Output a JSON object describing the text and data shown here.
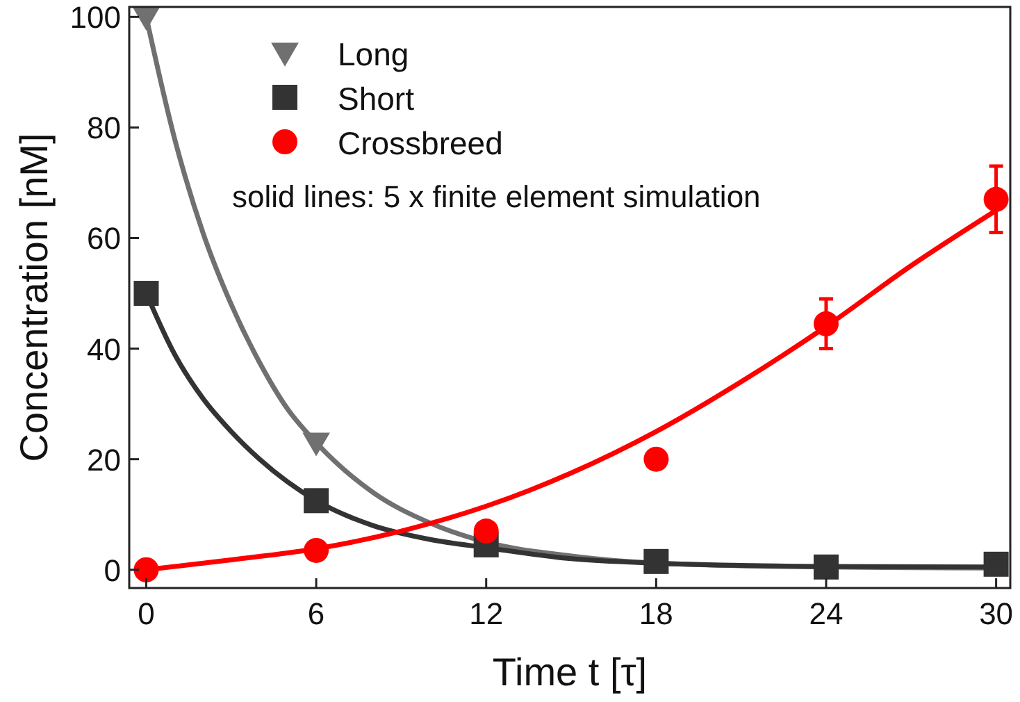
{
  "chart_data": {
    "type": "scatter",
    "xlabel": "Time t [τ]",
    "ylabel": "Concentration [nM]",
    "xlim": [
      -0.6,
      30.5
    ],
    "ylim": [
      -3.3,
      101.8
    ],
    "xticks": [
      0,
      6,
      12,
      18,
      24,
      30
    ],
    "yticks": [
      0,
      20,
      40,
      60,
      80,
      100
    ],
    "grid": false,
    "legend": "top",
    "annotations": [
      "solid lines: 5 x finite element simulation"
    ],
    "series": [
      {
        "type": "line",
        "color": "#707070",
        "marker": "none",
        "line_style": "solid",
        "x": [
          0,
          1,
          2,
          3,
          4,
          5,
          6,
          8,
          10,
          12,
          15,
          18,
          24,
          30
        ],
        "values": [
          100,
          78,
          61,
          48,
          37.5,
          29,
          23,
          14,
          8.5,
          5,
          2.5,
          1.2,
          0.5,
          0.3
        ]
      },
      {
        "type": "line",
        "color": "#333333",
        "marker": "none",
        "line_style": "solid",
        "x": [
          0,
          1,
          2,
          3,
          4,
          6,
          8,
          10,
          12,
          15,
          18,
          24,
          30
        ],
        "values": [
          50,
          39,
          31,
          25,
          20,
          12.5,
          8,
          5.5,
          4,
          2,
          1.2,
          0.6,
          0.5
        ]
      },
      {
        "type": "line",
        "color": "#ff0000",
        "marker": "none",
        "line_style": "solid",
        "x": [
          0,
          3,
          6,
          9,
          12,
          15,
          18,
          21,
          24,
          27,
          30
        ],
        "values": [
          0,
          1.8,
          3.8,
          7,
          11.5,
          17.5,
          25,
          34,
          44,
          55,
          65
        ]
      },
      {
        "name": "Long",
        "color": "#707070",
        "marker": "triangle",
        "x": [
          0,
          6
        ],
        "values": [
          100,
          23
        ]
      },
      {
        "name": "Short",
        "color": "#333333",
        "marker": "square",
        "x": [
          0,
          6,
          12,
          18,
          24,
          30
        ],
        "values": [
          50,
          12.5,
          4.5,
          1.5,
          0.5,
          1
        ]
      },
      {
        "name": "Crossbreed",
        "color": "#ff0000",
        "marker": "circle",
        "x": [
          0,
          6,
          12,
          18,
          24,
          30
        ],
        "values": [
          0,
          3.5,
          7,
          20,
          44.5,
          67
        ],
        "errors": [
          null,
          null,
          null,
          null,
          4.5,
          6
        ]
      }
    ]
  }
}
